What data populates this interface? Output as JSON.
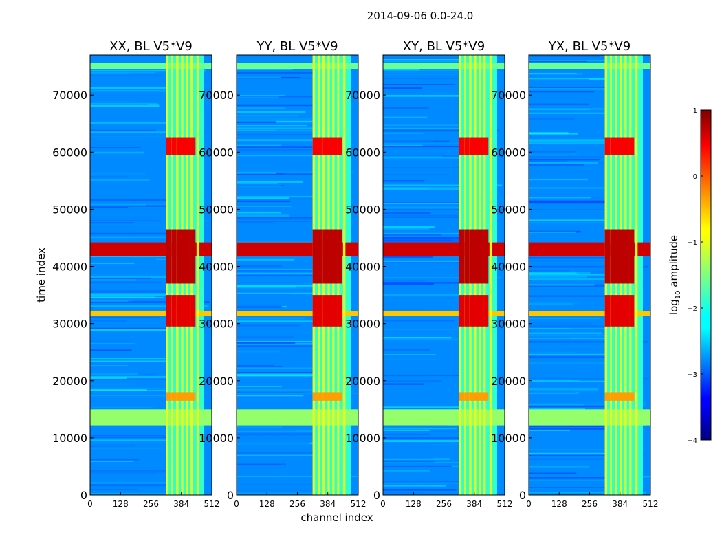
{
  "chart_data": {
    "type": "heatmap",
    "suptitle": "2014-09-06 0.0-24.0",
    "xlabel": "channel index",
    "ylabel": "time index",
    "xlim": [
      0,
      512
    ],
    "ylim": [
      0,
      77000
    ],
    "xticks": [
      "0",
      "128",
      "256",
      "384",
      "512"
    ],
    "yticks": [
      "0",
      "10000",
      "20000",
      "30000",
      "40000",
      "50000",
      "60000",
      "70000"
    ],
    "panels": [
      {
        "title": "XX, BL V5*V9",
        "polarization": "XX"
      },
      {
        "title": "YY, BL V5*V9",
        "polarization": "YY"
      },
      {
        "title": "XY, BL V5*V9",
        "polarization": "XY"
      },
      {
        "title": "YX, BL V5*V9",
        "polarization": "YX"
      }
    ],
    "colorbar": {
      "label_prefix": "log",
      "label_sub": "10",
      "label_suffix": " amplitude",
      "range": [
        -4,
        1
      ],
      "ticks": [
        "1",
        "0",
        "−1",
        "−2",
        "−3",
        "−4"
      ],
      "colormap": "jet"
    },
    "features": {
      "rfi_channel_band": [
        320,
        480
      ],
      "rfi_lines": [
        [
          320,
          330
        ],
        [
          342,
          350
        ],
        [
          362,
          372
        ],
        [
          383,
          392
        ],
        [
          403,
          412
        ],
        [
          423,
          432
        ],
        [
          448,
          458
        ]
      ],
      "horizontal_bands": [
        {
          "t0": 74500,
          "t1": 75600,
          "level": -1.6
        },
        {
          "t0": 41800,
          "t1": 44200,
          "level": 0.6
        },
        {
          "t0": 31300,
          "t1": 32200,
          "level": -0.6
        },
        {
          "t0": 12200,
          "t1": 15000,
          "level": -1.4
        }
      ],
      "hot_blocks": [
        {
          "t0": 59500,
          "t1": 62500,
          "level": 0.4
        },
        {
          "t0": 37000,
          "t1": 46500,
          "level": 0.7
        },
        {
          "t0": 29500,
          "t1": 35000,
          "level": 0.5
        },
        {
          "t0": 16500,
          "t1": 18000,
          "level": -0.4
        }
      ],
      "background_level": -2.7
    }
  }
}
